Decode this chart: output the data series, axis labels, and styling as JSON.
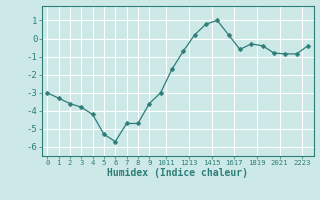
{
  "x": [
    0,
    1,
    2,
    3,
    4,
    5,
    6,
    7,
    8,
    9,
    10,
    11,
    12,
    13,
    14,
    15,
    16,
    17,
    18,
    19,
    20,
    21,
    22,
    23
  ],
  "y": [
    -3.0,
    -3.3,
    -3.6,
    -3.8,
    -4.2,
    -5.3,
    -5.7,
    -4.7,
    -4.7,
    -3.6,
    -3.0,
    -1.7,
    -0.7,
    0.2,
    0.8,
    1.0,
    0.2,
    -0.6,
    -0.3,
    -0.4,
    -0.8,
    -0.85,
    -0.85,
    -0.4
  ],
  "line_color": "#2d7d78",
  "marker": "D",
  "marker_size": 2.5,
  "background_color": "#cce9e7",
  "grid_color": "#ffffff",
  "xlabel": "Humidex (Indice chaleur)",
  "xlim": [
    -0.5,
    23.5
  ],
  "ylim": [
    -6.5,
    1.8
  ],
  "yticks": [
    1,
    0,
    -1,
    -2,
    -3,
    -4,
    -5,
    -6
  ],
  "xtick_positions": [
    0,
    1,
    2,
    3,
    4,
    5,
    6,
    7,
    8,
    9,
    10.5,
    12.5,
    14.5,
    16.5,
    18.5,
    20.5,
    22.5
  ],
  "xtick_labels": [
    "0",
    "1",
    "2",
    "3",
    "4",
    "5",
    "6",
    "7",
    "8",
    "9",
    "1011",
    "1213",
    "1415",
    "1617",
    "1819",
    "2021",
    "2223"
  ]
}
